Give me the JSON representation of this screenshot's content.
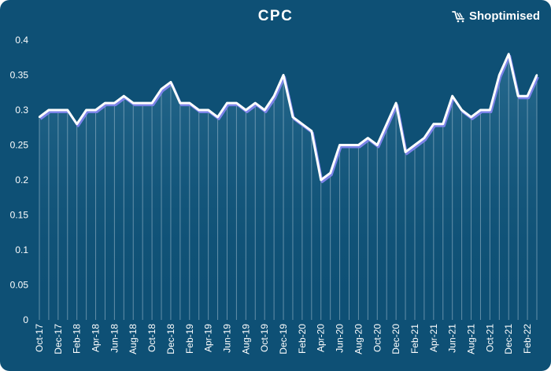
{
  "brand": {
    "name": "Shoptimised",
    "icon": "shopping-cart-icon"
  },
  "colors": {
    "background": "#0e5075",
    "line": "#ffffff",
    "line_shadow": "#7b83e8",
    "fill_top": "#2a6d91",
    "drop_line": "#a9c3d4",
    "text": "#ffffff"
  },
  "chart_data": {
    "type": "area",
    "title": "CPC",
    "xlabel": "",
    "ylabel": "",
    "ylim": [
      0,
      0.4
    ],
    "yticks": [
      0,
      0.05,
      0.1,
      0.15,
      0.2,
      0.25,
      0.3,
      0.35,
      0.4
    ],
    "ytick_labels": [
      "0",
      "0.05",
      "0.1",
      "0.15",
      "0.2",
      "0.25",
      "0.3",
      "0.35",
      "0.4"
    ],
    "grid": false,
    "x": [
      "Oct-17",
      "Nov-17",
      "Dec-17",
      "Jan-18",
      "Feb-18",
      "Mar-18",
      "Apr-18",
      "May-18",
      "Jun-18",
      "Jul-18",
      "Aug-18",
      "Sep-18",
      "Oct-18",
      "Nov-18",
      "Dec-18",
      "Jan-19",
      "Feb-19",
      "Mar-19",
      "Apr-19",
      "May-19",
      "Jun-19",
      "Jul-19",
      "Aug-19",
      "Sep-19",
      "Oct-19",
      "Nov-19",
      "Dec-19",
      "Jan-20",
      "Feb-20",
      "Mar-20",
      "Apr-20",
      "May-20",
      "Jun-20",
      "Jul-20",
      "Aug-20",
      "Sep-20",
      "Oct-20",
      "Nov-20",
      "Dec-20",
      "Jan-21",
      "Feb-21",
      "Mar-21",
      "Apr-21",
      "May-21",
      "Jun-21",
      "Jul-21",
      "Aug-21",
      "Sep-21",
      "Oct-21",
      "Nov-21",
      "Dec-21",
      "Jan-22",
      "Feb-22",
      "Mar-22"
    ],
    "xtick_labels": [
      "Oct-17",
      "Dec-17",
      "Feb-18",
      "Apr-18",
      "Jun-18",
      "Aug-18",
      "Oct-18",
      "Dec-18",
      "Feb-19",
      "Apr-19",
      "Jun-19",
      "Aug-19",
      "Oct-19",
      "Dec-19",
      "Feb-20",
      "Apr-20",
      "Jun-20",
      "Aug-20",
      "Oct-20",
      "Dec-20",
      "Feb-21",
      "Apr-21",
      "Jun-21",
      "Aug-21",
      "Oct-21",
      "Dec-21",
      "Feb-22"
    ],
    "series": [
      {
        "values": [
          0.29,
          0.3,
          0.3,
          0.3,
          0.28,
          0.3,
          0.3,
          0.31,
          0.31,
          0.32,
          0.31,
          0.31,
          0.31,
          0.33,
          0.34,
          0.31,
          0.31,
          0.3,
          0.3,
          0.29,
          0.31,
          0.31,
          0.3,
          0.31,
          0.3,
          0.32,
          0.35,
          0.29,
          0.28,
          0.27,
          0.2,
          0.21,
          0.25,
          0.25,
          0.25,
          0.26,
          0.25,
          0.28,
          0.31,
          0.24,
          0.25,
          0.26,
          0.28,
          0.28,
          0.32,
          0.3,
          0.29,
          0.3,
          0.3,
          0.35,
          0.38,
          0.32,
          0.32,
          0.35
        ]
      }
    ]
  }
}
